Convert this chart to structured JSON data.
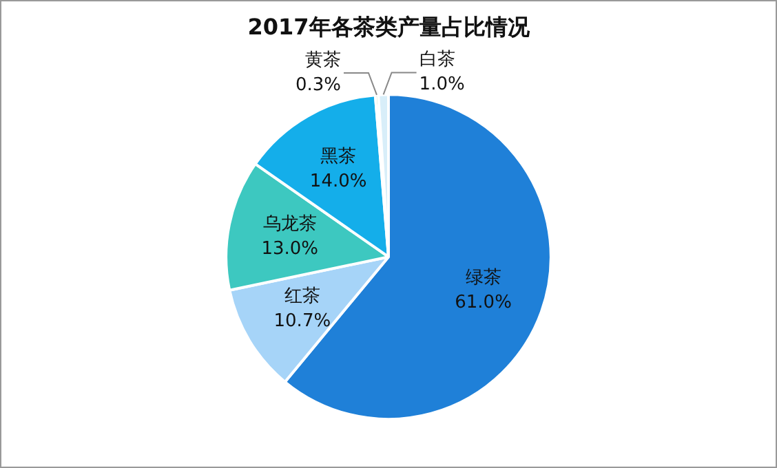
{
  "chart_data": {
    "type": "pie",
    "title": "2017年各茶类产量占比情况",
    "categories": [
      "绿茶",
      "红茶",
      "乌龙茶",
      "黑茶",
      "黄茶",
      "白茶"
    ],
    "values": [
      61.0,
      10.7,
      13.0,
      14.0,
      0.3,
      1.0
    ],
    "value_labels": [
      "61.0%",
      "10.7%",
      "13.0%",
      "14.0%",
      "0.3%",
      "1.0%"
    ],
    "colors": [
      "#1f80d8",
      "#a6d4f8",
      "#3dc8c0",
      "#14aeea",
      "#9ccf85",
      "#d8eef9"
    ],
    "legend": false
  }
}
